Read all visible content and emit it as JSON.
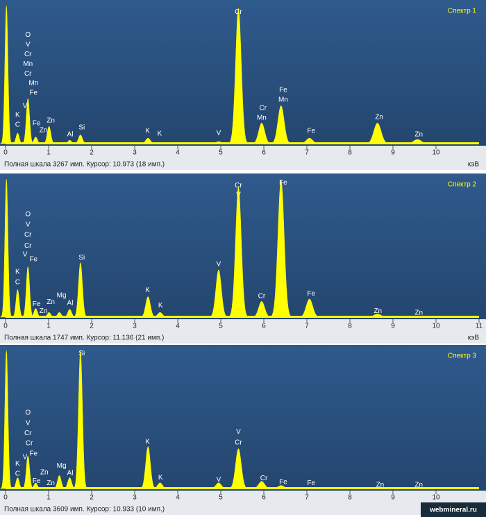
{
  "watermark": "webmineral.ru",
  "chart_data": [
    {
      "type": "spectrum",
      "title": "Спектр 1",
      "footer": "Полная шкала 3267 имп. Курсор: 10.973 (18 имп.)",
      "x_unit": "кэВ",
      "color": "#ffff00",
      "xlim": [
        0,
        11
      ],
      "xticks": [
        0,
        1,
        2,
        3,
        4,
        5,
        6,
        7,
        8,
        9,
        10
      ],
      "ylim": [
        0,
        3267
      ],
      "peaks": {
        "x": [
          0.02,
          0.28,
          0.52,
          0.7,
          1.01,
          1.49,
          1.74,
          3.31,
          4.95,
          5.41,
          5.95,
          6.4,
          7.06,
          8.64,
          9.57
        ],
        "values": [
          3267,
          250,
          1070,
          160,
          410,
          80,
          210,
          130,
          50,
          3200,
          490,
          900,
          130,
          490,
          100
        ]
      },
      "annotations": [
        {
          "text": "O",
          "x": 0.52,
          "y": 2575
        },
        {
          "text": "V",
          "x": 0.52,
          "y": 2345
        },
        {
          "text": "Cr",
          "x": 0.52,
          "y": 2116
        },
        {
          "text": "Mn",
          "x": 0.52,
          "y": 1886
        },
        {
          "text": "Cr",
          "x": 0.52,
          "y": 1656
        },
        {
          "text": "Mn",
          "x": 0.65,
          "y": 1427
        },
        {
          "text": "Fe",
          "x": 0.65,
          "y": 1197
        },
        {
          "text": "K",
          "x": 0.28,
          "y": 672
        },
        {
          "text": "C",
          "x": 0.28,
          "y": 443
        },
        {
          "text": "V",
          "x": 0.45,
          "y": 886
        },
        {
          "text": "Fe",
          "x": 0.72,
          "y": 476
        },
        {
          "text": "Zn",
          "x": 0.88,
          "y": 312
        },
        {
          "text": "Zn",
          "x": 1.05,
          "y": 541
        },
        {
          "text": "Al",
          "x": 1.5,
          "y": 213
        },
        {
          "text": "Si",
          "x": 1.77,
          "y": 377
        },
        {
          "text": "K",
          "x": 3.3,
          "y": 295
        },
        {
          "text": "K",
          "x": 3.58,
          "y": 230
        },
        {
          "text": "V",
          "x": 4.95,
          "y": 246
        },
        {
          "text": "Cr",
          "x": 5.41,
          "y": 3116
        },
        {
          "text": "Cr",
          "x": 5.98,
          "y": 836
        },
        {
          "text": "Mn",
          "x": 5.95,
          "y": 607
        },
        {
          "text": "Fe",
          "x": 6.45,
          "y": 1263
        },
        {
          "text": "Mn",
          "x": 6.45,
          "y": 1033
        },
        {
          "text": "Fe",
          "x": 7.1,
          "y": 295
        },
        {
          "text": "Zn",
          "x": 8.68,
          "y": 623
        },
        {
          "text": "Zn",
          "x": 9.6,
          "y": 213
        }
      ]
    },
    {
      "type": "spectrum",
      "title": "Спектр 2",
      "footer": "Полная шкала 1747 имп. Курсор: 11.136 (21 имп.)",
      "x_unit": "кэВ",
      "color": "#ffff00",
      "xlim": [
        0,
        11
      ],
      "xticks": [
        0,
        1,
        2,
        3,
        4,
        5,
        6,
        7,
        8,
        9,
        10,
        11
      ],
      "ylim": [
        0,
        1747
      ],
      "peaks": {
        "x": [
          0.02,
          0.28,
          0.52,
          0.7,
          1.01,
          1.25,
          1.49,
          1.74,
          3.31,
          3.59,
          4.95,
          5.41,
          5.95,
          6.4,
          7.06,
          8.64
        ],
        "values": [
          1747,
          350,
          640,
          110,
          60,
          60,
          100,
          690,
          260,
          60,
          600,
          1650,
          200,
          1740,
          230,
          40
        ]
      },
      "annotations": [
        {
          "text": "O",
          "x": 0.52,
          "y": 1300
        },
        {
          "text": "V",
          "x": 0.52,
          "y": 1170
        },
        {
          "text": "Cr",
          "x": 0.52,
          "y": 1040
        },
        {
          "text": "Cr",
          "x": 0.52,
          "y": 900
        },
        {
          "text": "V",
          "x": 0.45,
          "y": 790
        },
        {
          "text": "Fe",
          "x": 0.65,
          "y": 730
        },
        {
          "text": "K",
          "x": 0.28,
          "y": 570
        },
        {
          "text": "C",
          "x": 0.28,
          "y": 440
        },
        {
          "text": "Fe",
          "x": 0.72,
          "y": 165
        },
        {
          "text": "Zn",
          "x": 0.88,
          "y": 75
        },
        {
          "text": "Zn",
          "x": 1.05,
          "y": 190
        },
        {
          "text": "Mg",
          "x": 1.3,
          "y": 275
        },
        {
          "text": "Al",
          "x": 1.5,
          "y": 175
        },
        {
          "text": "Si",
          "x": 1.77,
          "y": 750
        },
        {
          "text": "K",
          "x": 3.3,
          "y": 340
        },
        {
          "text": "K",
          "x": 3.6,
          "y": 145
        },
        {
          "text": "V",
          "x": 4.95,
          "y": 670
        },
        {
          "text": "Cr",
          "x": 5.41,
          "y": 1665
        },
        {
          "text": "V",
          "x": 5.41,
          "y": 1545
        },
        {
          "text": "Cr",
          "x": 5.95,
          "y": 265
        },
        {
          "text": "Fe",
          "x": 6.45,
          "y": 1700
        },
        {
          "text": "Fe",
          "x": 7.1,
          "y": 295
        },
        {
          "text": "Zn",
          "x": 8.65,
          "y": 75
        },
        {
          "text": "Zn",
          "x": 9.6,
          "y": 55
        }
      ]
    },
    {
      "type": "spectrum",
      "title": "Спектр 3",
      "footer": "Полная шкала 3609 имп. Курсор: 10.933 (10 имп.)",
      "x_unit": "кэВ",
      "color": "#ffff00",
      "xlim": [
        0,
        11
      ],
      "xticks": [
        0,
        1,
        2,
        3,
        4,
        5,
        6,
        7,
        8,
        9,
        10
      ],
      "ylim": [
        0,
        3609
      ],
      "peaks": {
        "x": [
          0.02,
          0.28,
          0.52,
          0.7,
          1.25,
          1.49,
          1.74,
          3.31,
          3.59,
          4.95,
          5.41,
          5.95,
          6.4
        ],
        "values": [
          3609,
          285,
          855,
          150,
          340,
          285,
          3600,
          1100,
          150,
          150,
          1045,
          190,
          80
        ]
      },
      "annotations": [
        {
          "text": "Si",
          "x": 1.77,
          "y": 3530
        },
        {
          "text": "O",
          "x": 0.52,
          "y": 1975
        },
        {
          "text": "V",
          "x": 0.52,
          "y": 1710
        },
        {
          "text": "Cr",
          "x": 0.52,
          "y": 1445
        },
        {
          "text": "Cr",
          "x": 0.55,
          "y": 1180
        },
        {
          "text": "V",
          "x": 0.45,
          "y": 815
        },
        {
          "text": "Fe",
          "x": 0.65,
          "y": 910
        },
        {
          "text": "K",
          "x": 0.28,
          "y": 645
        },
        {
          "text": "C",
          "x": 0.28,
          "y": 380
        },
        {
          "text": "Fe",
          "x": 0.72,
          "y": 190
        },
        {
          "text": "Zn",
          "x": 0.9,
          "y": 420
        },
        {
          "text": "Zn",
          "x": 1.05,
          "y": 135
        },
        {
          "text": "Mg",
          "x": 1.3,
          "y": 590
        },
        {
          "text": "Al",
          "x": 1.5,
          "y": 400
        },
        {
          "text": "K",
          "x": 3.3,
          "y": 1215
        },
        {
          "text": "K",
          "x": 3.6,
          "y": 285
        },
        {
          "text": "V",
          "x": 4.95,
          "y": 230
        },
        {
          "text": "V",
          "x": 5.41,
          "y": 1480
        },
        {
          "text": "Cr",
          "x": 5.41,
          "y": 1195
        },
        {
          "text": "Cr",
          "x": 6.0,
          "y": 265
        },
        {
          "text": "Fe",
          "x": 6.45,
          "y": 170
        },
        {
          "text": "Fe",
          "x": 7.1,
          "y": 135
        },
        {
          "text": "Zn",
          "x": 8.7,
          "y": 95
        },
        {
          "text": "Zn",
          "x": 9.6,
          "y": 95
        }
      ]
    }
  ]
}
